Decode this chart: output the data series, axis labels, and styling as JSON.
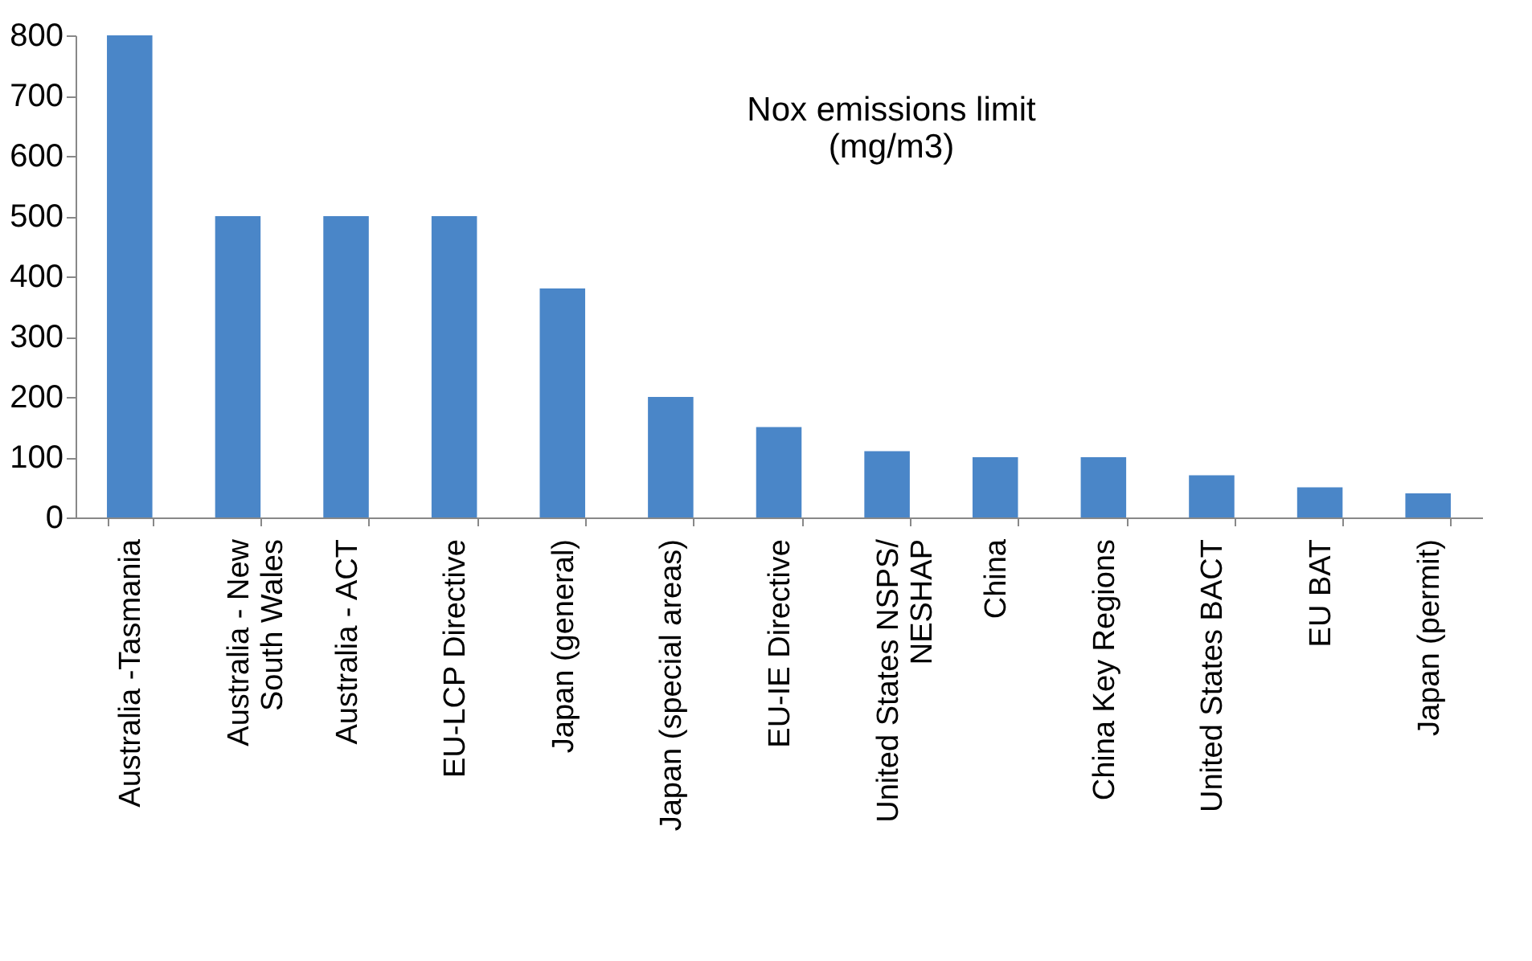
{
  "chart_data": {
    "type": "bar",
    "title": [
      "Nox emissions limit",
      "(mg/m3)"
    ],
    "categories": [
      "Australia -Tasmania",
      "Australia - New\nSouth Wales",
      "Australia - ACT",
      "EU-LCP Directive",
      "Japan (general)",
      "Japan (special areas)",
      "EU-IE Directive",
      "United States NSPS/\nNESHAP",
      "China",
      "China Key Regions",
      "United States BACT",
      "EU BAT",
      "Japan (permit)"
    ],
    "values": [
      800,
      500,
      500,
      500,
      380,
      200,
      150,
      110,
      100,
      100,
      70,
      50,
      40
    ],
    "color": "#4a86c8",
    "ylim": [
      0,
      800
    ],
    "yticks": [
      0,
      100,
      200,
      300,
      400,
      500,
      600,
      700,
      800
    ],
    "grid": false
  }
}
